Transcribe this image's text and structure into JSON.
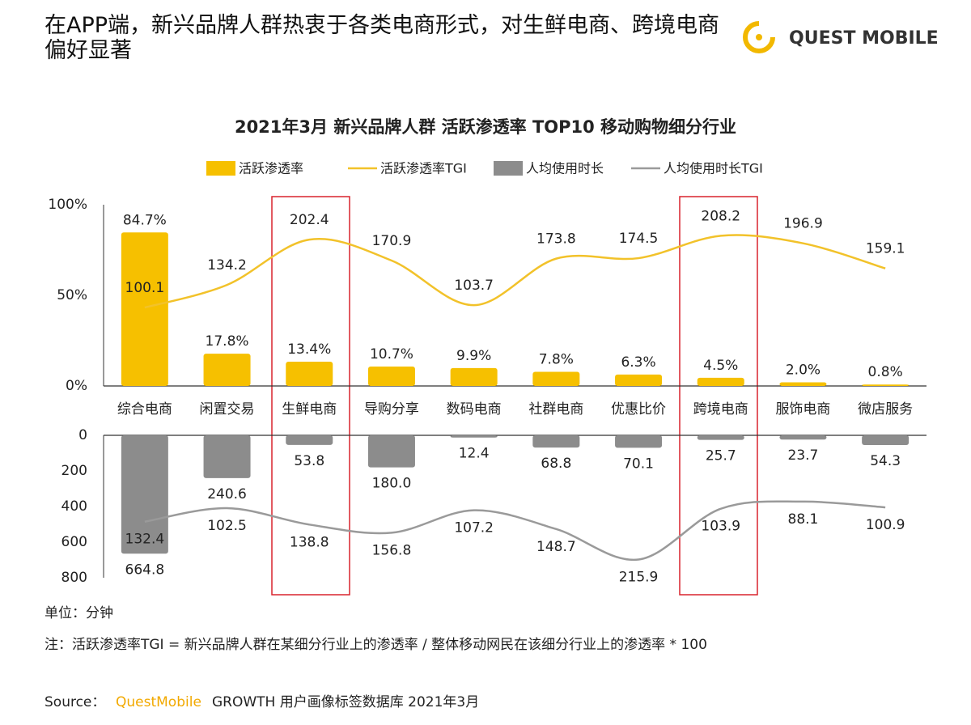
{
  "header": {
    "title": "在APP端，新兴品牌人群热衷于各类电商形式，对生鲜电商、跨境电商偏好显著",
    "logo": "QUEST MOBILE"
  },
  "chart_data": [
    {
      "type": "bar",
      "title": "2021年3月  新兴品牌人群 活跃渗透率 TOP10 移动购物细分行业",
      "categories": [
        "综合电商",
        "闲置交易",
        "生鲜电商",
        "导购分享",
        "数码电商",
        "社群电商",
        "优惠比价",
        "跨境电商",
        "服饰电商",
        "微店服务"
      ],
      "ylim": [
        0,
        100
      ],
      "yticks": [
        {
          "value": 0,
          "label": "0%"
        },
        {
          "value": 50,
          "label": "50%"
        },
        {
          "value": 100,
          "label": "100%"
        }
      ],
      "y2lim": [
        -18,
        255
      ],
      "series": [
        {
          "name": "活跃渗透率",
          "type": "bar",
          "color": "#f6c000",
          "values": [
            84.7,
            17.8,
            13.4,
            10.7,
            9.9,
            7.8,
            6.3,
            4.5,
            2.0,
            0.8
          ],
          "value_labels": [
            "84.7%",
            "17.8%",
            "13.4%",
            "10.7%",
            "9.9%",
            "7.8%",
            "6.3%",
            "4.5%",
            "2.0%",
            "0.8%"
          ]
        },
        {
          "name": "活跃渗透率TGI",
          "type": "line",
          "axis": "y2",
          "color": "#f2c22a",
          "values": [
            100.1,
            134.2,
            202.4,
            170.9,
            103.7,
            173.8,
            174.5,
            208.2,
            196.9,
            159.1
          ]
        }
      ]
    },
    {
      "type": "bar",
      "inverted": true,
      "ylim": [
        0,
        800
      ],
      "yticks": [
        0,
        200,
        400,
        600,
        800
      ],
      "y2lim": [
        -58,
        256
      ],
      "series": [
        {
          "name": "人均使用时长",
          "type": "bar",
          "color": "#8c8c8c",
          "values": [
            664.8,
            240.6,
            53.8,
            180.0,
            12.4,
            68.8,
            70.1,
            25.7,
            23.7,
            54.3
          ],
          "value_labels": [
            "664.8",
            "240.6",
            "53.8",
            "180.0",
            "12.4",
            "68.8",
            "70.1",
            "25.7",
            "23.7",
            "54.3"
          ]
        },
        {
          "name": "人均使用时长TGI",
          "type": "line",
          "axis": "y2",
          "color": "#9a9a9a",
          "values": [
            132.4,
            102.5,
            138.8,
            156.8,
            107.2,
            148.7,
            215.9,
            103.9,
            88.1,
            100.9
          ]
        }
      ]
    }
  ],
  "footer": {
    "unit": "单位：分钟",
    "note": "注：活跃渗透率TGI = 新兴品牌人群在某细分行业上的渗透率 / 整体移动网民在该细分行业上的渗透率 * 100",
    "source_label": "Source：",
    "source_brand": "QuestMobile",
    "source_text": "GROWTH 用户画像标签数据库 2021年3月"
  }
}
